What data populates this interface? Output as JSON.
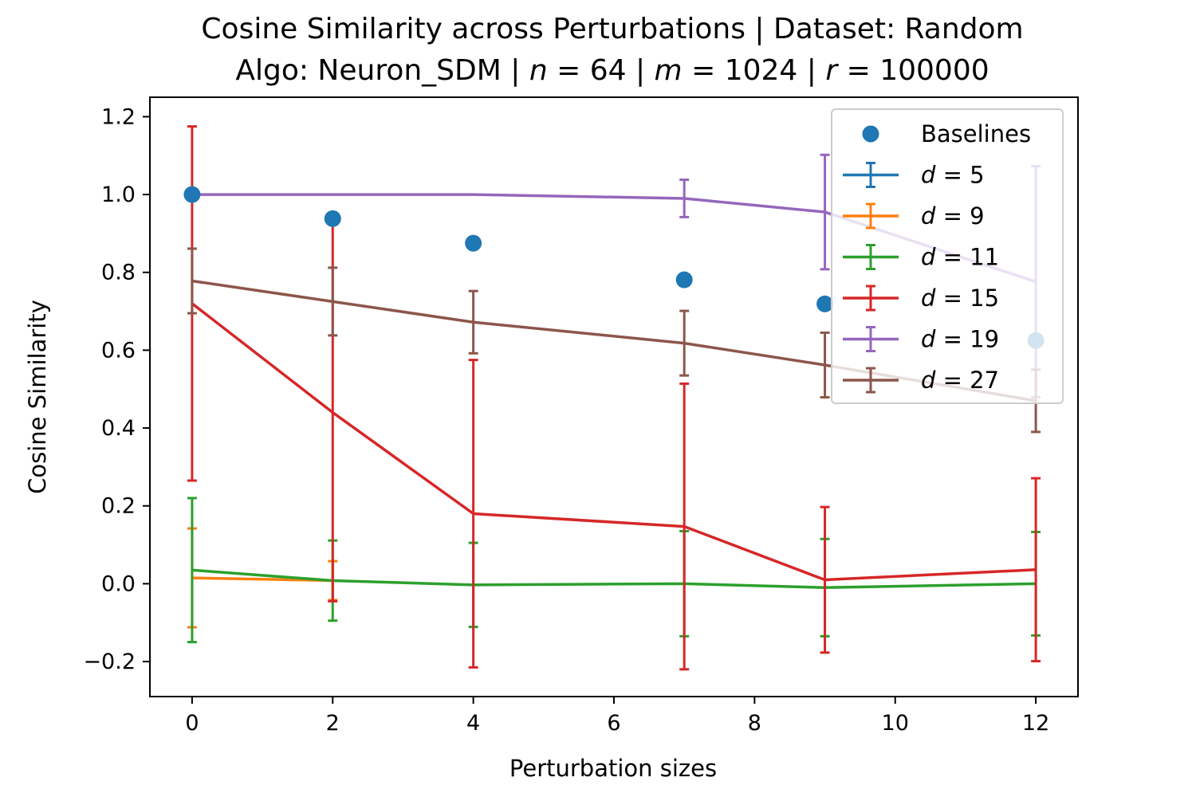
{
  "chart_data": {
    "type": "line",
    "title_line1": "Cosine Similarity across Perturbations | Dataset: Random",
    "title_line2_prefix": "Algo: Neuron_SDM | ",
    "title_params": [
      {
        "var": "n",
        "value": "64"
      },
      {
        "var": "m",
        "value": "1024"
      },
      {
        "var": "r",
        "value": "100000"
      }
    ],
    "xlabel": "Perturbation sizes",
    "ylabel": "Cosine Similarity",
    "xlim": [
      -0.6,
      12.6
    ],
    "ylim": [
      -0.29,
      1.25
    ],
    "xticks": [
      0,
      2,
      4,
      6,
      8,
      10,
      12
    ],
    "xtick_labels": [
      "0",
      "2",
      "4",
      "6",
      "8",
      "10",
      "12"
    ],
    "yticks": [
      -0.2,
      0.0,
      0.2,
      0.4,
      0.6,
      0.8,
      1.0,
      1.2
    ],
    "ytick_labels": [
      "−0.2",
      "0.0",
      "0.2",
      "0.4",
      "0.6",
      "0.8",
      "1.0",
      "1.2"
    ],
    "legend_position": "top-right",
    "baselines": {
      "name": "Baselines",
      "color": "#1f77b4",
      "x": [
        0,
        2,
        4,
        7,
        9,
        12
      ],
      "y": [
        1.0,
        0.938,
        0.875,
        0.781,
        0.719,
        0.625
      ]
    },
    "series": [
      {
        "var": "d",
        "value": "5",
        "color": "#1f77b4",
        "x": [],
        "y": [],
        "err": []
      },
      {
        "var": "d",
        "value": "9",
        "color": "#ff7f0e",
        "x": [
          0,
          2
        ],
        "y": [
          0.015,
          0.008
        ],
        "err": [
          0.127,
          0.05
        ]
      },
      {
        "var": "d",
        "value": "11",
        "color": "#2ca02c",
        "x": [
          0,
          2,
          4,
          7,
          9,
          12
        ],
        "y": [
          0.035,
          0.008,
          -0.003,
          0.0,
          -0.01,
          0.0
        ],
        "err": [
          0.185,
          0.103,
          0.108,
          0.135,
          0.125,
          0.133
        ]
      },
      {
        "var": "d",
        "value": "15",
        "color": "#d62728",
        "x": [
          0,
          2,
          4,
          7,
          9,
          12
        ],
        "y": [
          0.72,
          0.44,
          0.18,
          0.147,
          0.01,
          0.036
        ],
        "err": [
          0.455,
          0.485,
          0.395,
          0.367,
          0.187,
          0.235
        ]
      },
      {
        "var": "d",
        "value": "19",
        "color": "#9467bd",
        "x": [
          0,
          4,
          7,
          9,
          12
        ],
        "y": [
          1.0,
          1.0,
          0.99,
          0.955,
          0.776
        ],
        "err": [
          0.0,
          0.0,
          0.048,
          0.147,
          0.297
        ]
      },
      {
        "var": "d",
        "value": "27",
        "color": "#8c564b",
        "x": [
          0,
          2,
          4,
          7,
          9,
          12
        ],
        "y": [
          0.778,
          0.725,
          0.672,
          0.618,
          0.562,
          0.47
        ],
        "err": [
          0.083,
          0.087,
          0.08,
          0.083,
          0.083,
          0.08
        ]
      }
    ]
  }
}
